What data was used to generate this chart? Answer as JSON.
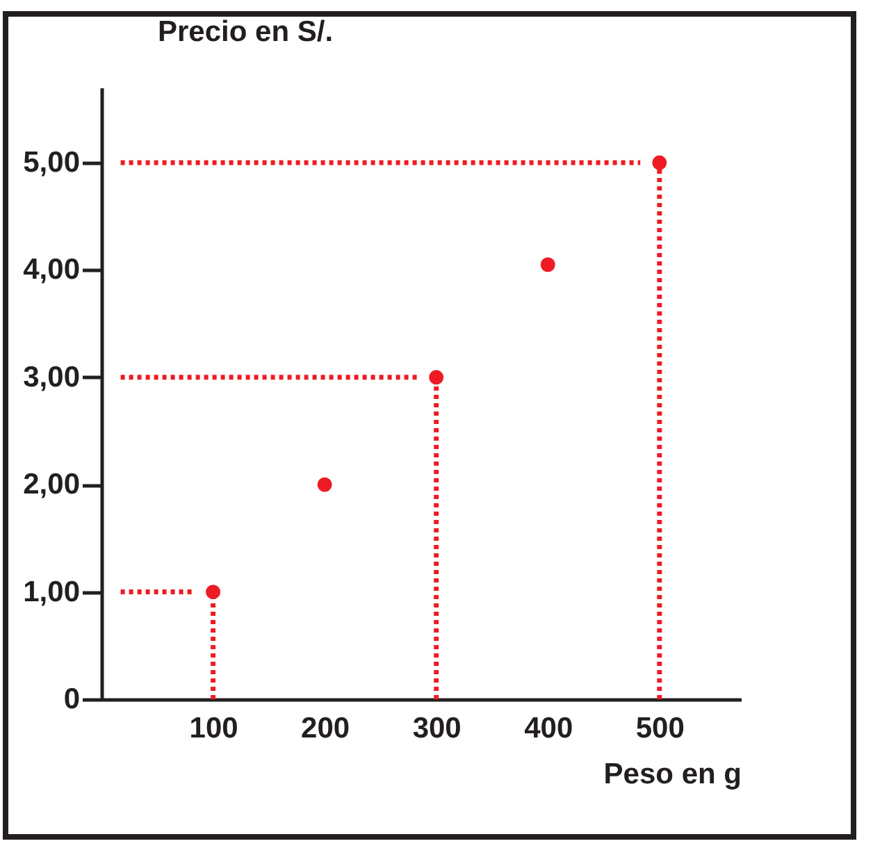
{
  "chart_data": {
    "type": "scatter",
    "xlabel": "Peso en g",
    "ylabel": "Precio en S/.",
    "x": [
      100,
      200,
      300,
      400,
      500
    ],
    "series": [
      {
        "color": "#ed1c24",
        "values": [
          1,
          2,
          3,
          4.05,
          5
        ]
      }
    ],
    "xlim": [
      0,
      573
    ],
    "xticks": [
      100,
      200,
      300,
      400,
      500
    ],
    "ylim": [
      0,
      5.7
    ],
    "yticks": [
      0,
      {
        "value": 1,
        "label": "1,00"
      },
      {
        "value": 2,
        "label": "2,00"
      },
      {
        "value": 3,
        "label": "3,00"
      },
      {
        "value": 4,
        "label": "4,00"
      },
      {
        "value": 5,
        "label": "5,00"
      }
    ],
    "grid": false,
    "marker": "circle",
    "ref_lines": [
      {
        "axis": "x",
        "value": 100,
        "color": "#ed1c24",
        "line_style": "dotted"
      },
      {
        "axis": "y",
        "value": 1,
        "color": "#ed1c24",
        "line_style": "dotted"
      },
      {
        "axis": "x",
        "value": 300,
        "color": "#ed1c24",
        "line_style": "dotted"
      },
      {
        "axis": "y",
        "value": 3,
        "color": "#ed1c24",
        "line_style": "dotted"
      },
      {
        "axis": "x",
        "value": 500,
        "color": "#ed1c24",
        "line_style": "dotted"
      },
      {
        "axis": "y",
        "value": 5,
        "color": "#ed1c24",
        "line_style": "dotted"
      }
    ]
  }
}
